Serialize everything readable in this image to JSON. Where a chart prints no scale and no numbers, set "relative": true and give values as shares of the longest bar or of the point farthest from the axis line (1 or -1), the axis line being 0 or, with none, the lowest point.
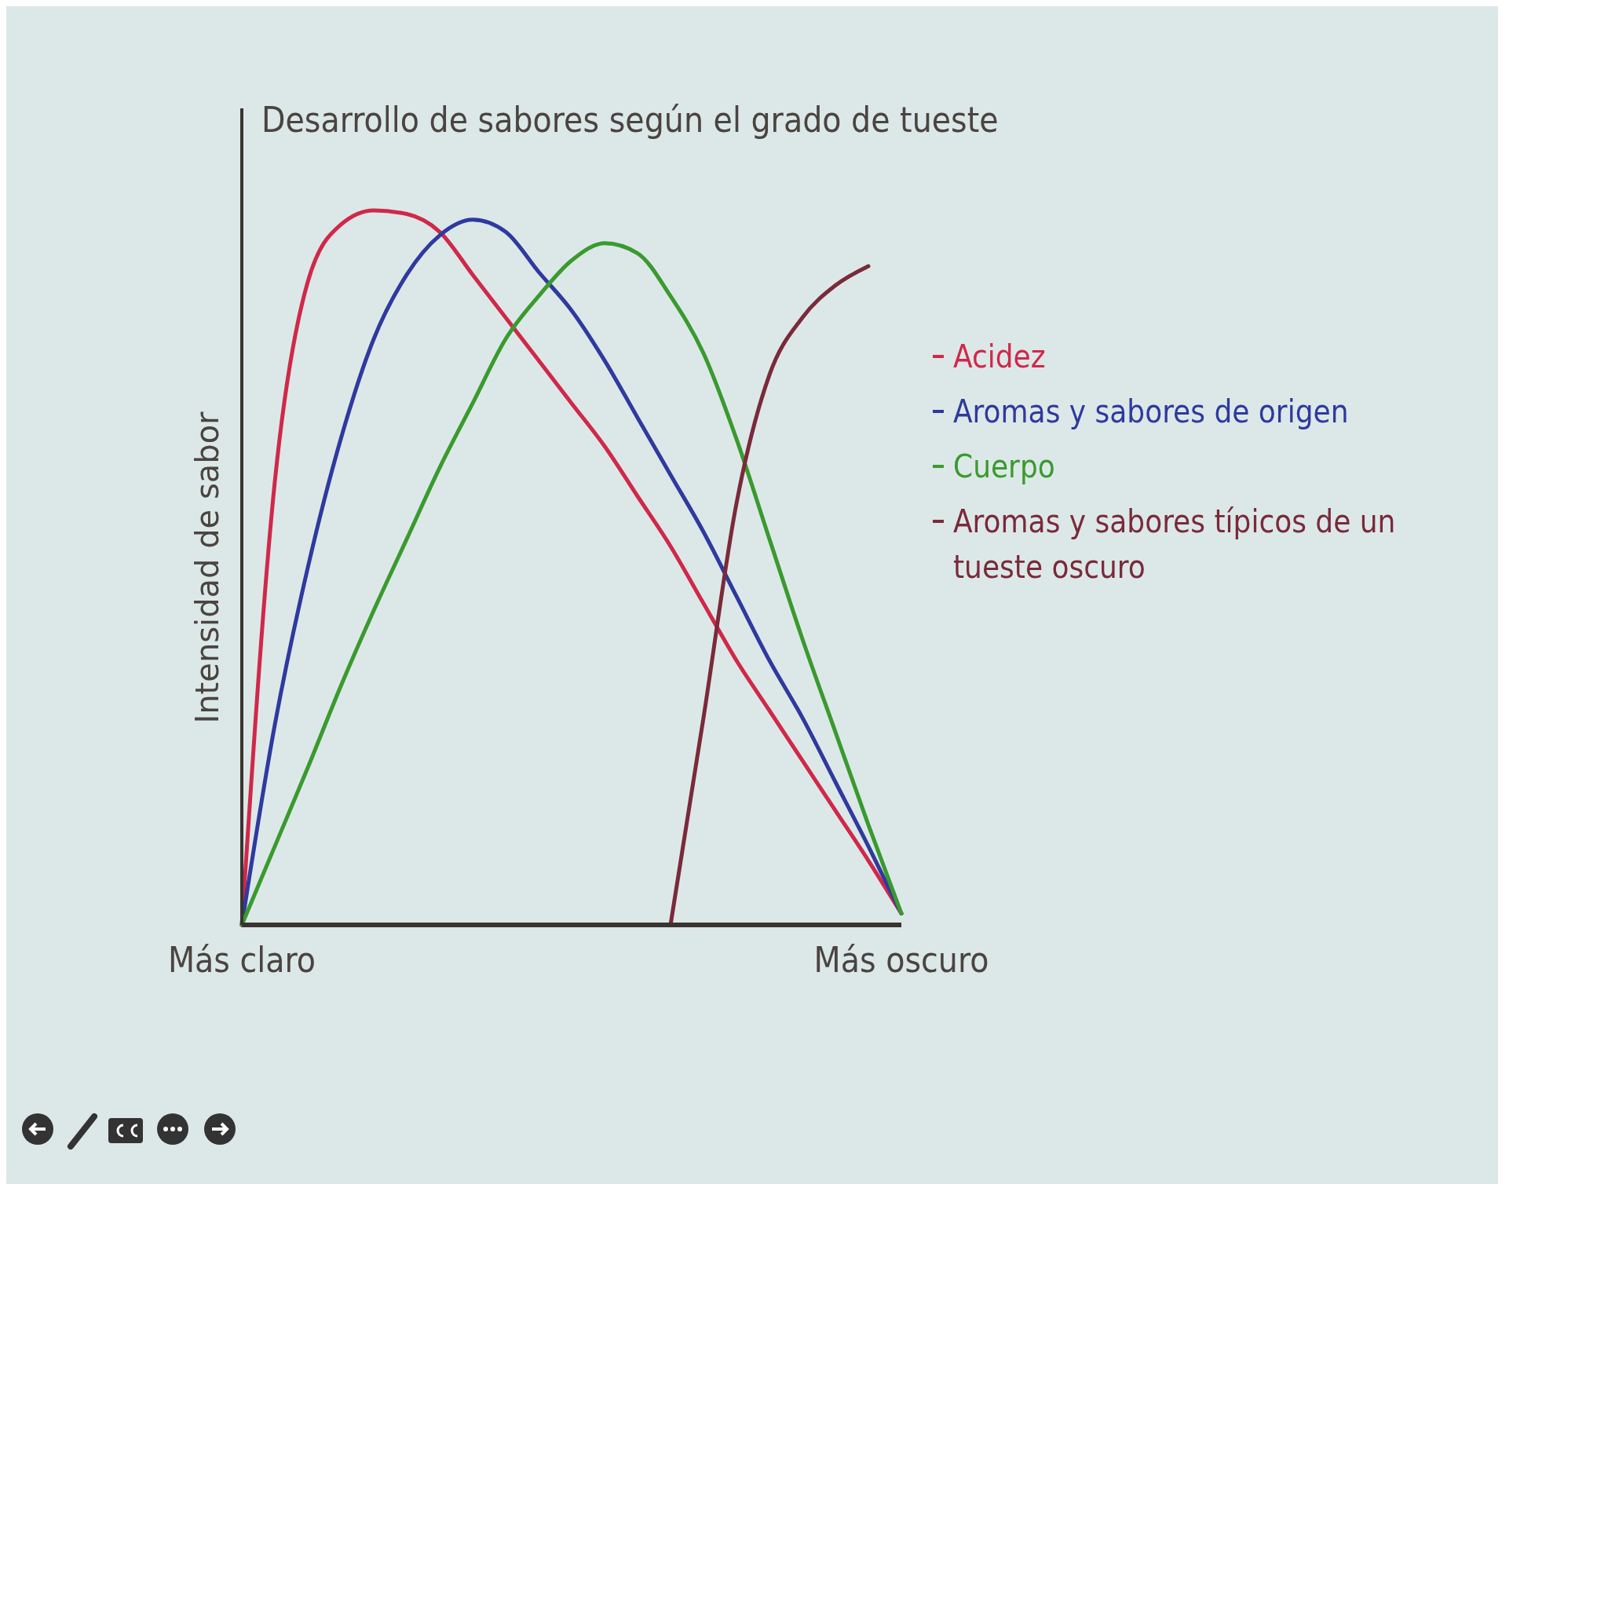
{
  "chart_data": {
    "type": "line",
    "title": "Desarrollo de sabores según el grado de tueste",
    "ylabel": "Intensidad de sabor",
    "relative": true,
    "categories": [
      "Más claro",
      null,
      null,
      null,
      null,
      null,
      null,
      null,
      null,
      null,
      null,
      null,
      null,
      null,
      null,
      null,
      null,
      null,
      null,
      null,
      "Más oscuro"
    ],
    "grid": false,
    "legend": "right",
    "marker": "none",
    "line_style": "solid",
    "series": [
      {
        "name": "Acidez",
        "color": "#d0284a",
        "values": [
          0,
          0.62,
          0.9,
          0.98,
          1,
          0.995,
          0.97,
          0.91,
          0.85,
          0.79,
          0.73,
          0.67,
          0.6,
          0.53,
          0.45,
          0.37,
          0.3,
          0.23,
          0.16,
          0.09,
          0.016
        ]
      },
      {
        "name": "Aromas y sabores de origen",
        "color": "#2e3a9e",
        "values": [
          0,
          0.28,
          0.5,
          0.68,
          0.82,
          0.91,
          0.965,
          0.987,
          0.97,
          0.914,
          0.86,
          0.79,
          0.71,
          0.63,
          0.55,
          0.46,
          0.37,
          0.29,
          0.2,
          0.11,
          0.016
        ]
      },
      {
        "name": "Cuerpo",
        "color": "#3a9a2e",
        "values": [
          0,
          0.11,
          0.22,
          0.334,
          0.44,
          0.54,
          0.64,
          0.73,
          0.82,
          0.88,
          0.93,
          0.954,
          0.94,
          0.88,
          0.8,
          0.68,
          0.54,
          0.4,
          0.27,
          0.14,
          0.016
        ]
      },
      {
        "name": "Aromas y sabores típicos de un tueste oscuro",
        "color": "#7a2a3a",
        "values": [
          null,
          null,
          null,
          null,
          null,
          null,
          null,
          null,
          null,
          null,
          null,
          null,
          null,
          0,
          0.29,
          0.59,
          0.77,
          0.85,
          0.895,
          0.922,
          null
        ]
      }
    ]
  }
}
